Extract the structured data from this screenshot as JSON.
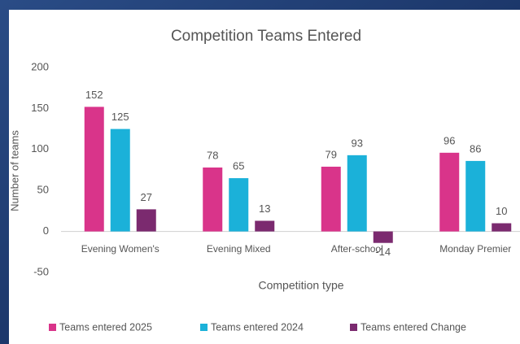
{
  "chart_data": {
    "type": "bar",
    "title": "Competition Teams Entered",
    "x_label": "Competition type",
    "y_label": "Number of teams",
    "categories": [
      "Evening Women's",
      "Evening Mixed",
      "After-school",
      "Monday Premier"
    ],
    "series": [
      {
        "name": "Teams entered 2025",
        "color": "#d9348a",
        "values": [
          152,
          78,
          79,
          96
        ]
      },
      {
        "name": "Teams entered 2024",
        "color": "#1bb1d9",
        "values": [
          125,
          65,
          93,
          86
        ]
      },
      {
        "name": "Teams entered Change",
        "color": "#7b2a6f",
        "values": [
          27,
          13,
          -14,
          10
        ]
      }
    ],
    "ylim": [
      -50,
      200
    ],
    "yticks": [
      -50,
      0,
      50,
      100,
      150,
      200
    ],
    "grid": false,
    "legend": "bottom"
  }
}
